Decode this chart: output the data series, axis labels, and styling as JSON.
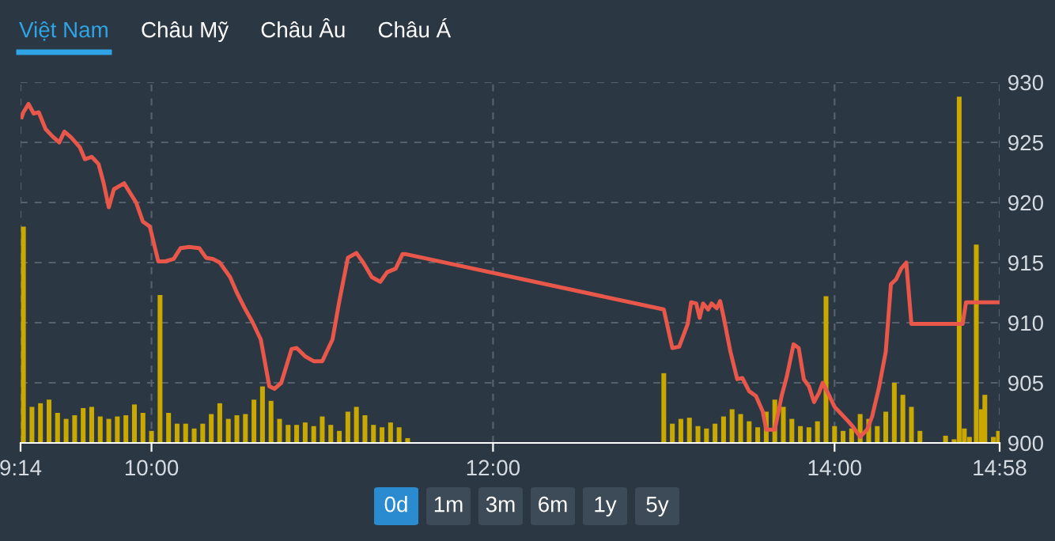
{
  "chart_data": {
    "type": "line",
    "annotations": [
      "Việt Nam",
      "Châu Mỹ",
      "Châu Âu",
      "Châu Á",
      "0d",
      "1m",
      "3m",
      "6m",
      "1y",
      "5y"
    ],
    "xlim": [
      9.2333,
      14.9667
    ],
    "ylim": [
      900,
      930
    ],
    "xticks": [
      {
        "value": 9.2333,
        "label": "9:14"
      },
      {
        "value": 10,
        "label": "10:00"
      },
      {
        "value": 12,
        "label": "12:00"
      },
      {
        "value": 14,
        "label": "14:00"
      },
      {
        "value": 14.9667,
        "label": "14:58"
      }
    ],
    "yticks": [
      900,
      905,
      910,
      915,
      920,
      925,
      930
    ],
    "grid": true,
    "legend": false,
    "marker": "none",
    "line_style": "solid",
    "series": [
      {
        "type": "bar",
        "color": "#c9a800",
        "x": [
          9.25,
          9.3,
          9.35,
          9.4,
          9.45,
          9.5,
          9.55,
          9.6,
          9.65,
          9.7,
          9.75,
          9.8,
          9.85,
          9.9,
          9.95,
          10.0,
          10.05,
          10.1,
          10.15,
          10.2,
          10.25,
          10.3,
          10.35,
          10.4,
          10.45,
          10.5,
          10.55,
          10.6,
          10.65,
          10.7,
          10.75,
          10.8,
          10.85,
          10.9,
          10.95,
          11.0,
          11.05,
          11.1,
          11.15,
          11.2,
          11.25,
          11.3,
          11.35,
          11.4,
          11.45,
          11.5,
          13.0,
          13.05,
          13.1,
          13.15,
          13.2,
          13.25,
          13.3,
          13.35,
          13.4,
          13.45,
          13.5,
          13.55,
          13.6,
          13.65,
          13.7,
          13.75,
          13.8,
          13.85,
          13.9,
          13.95,
          14.0,
          14.05,
          14.1,
          14.15,
          14.2,
          14.25,
          14.3,
          14.35,
          14.4,
          14.45,
          14.5,
          14.65,
          14.7,
          14.73,
          14.76,
          14.79,
          14.83,
          14.86,
          14.88,
          14.93,
          14.96
        ],
        "values": [
          918.0,
          903.0,
          903.3,
          903.6,
          902.5,
          902.0,
          902.3,
          902.9,
          903.0,
          902.2,
          902.0,
          902.2,
          902.3,
          903.2,
          902.5,
          901.0,
          912.3,
          902.5,
          901.6,
          901.6,
          901.2,
          901.6,
          902.4,
          903.3,
          902.0,
          902.3,
          902.4,
          903.6,
          904.7,
          903.5,
          902.0,
          901.5,
          901.5,
          901.7,
          901.4,
          902.2,
          901.5,
          901.0,
          902.6,
          903.0,
          902.3,
          901.5,
          901.3,
          901.7,
          901.3,
          900.4,
          905.8,
          901.6,
          902.0,
          902.1,
          901.4,
          901.2,
          901.6,
          902.2,
          902.8,
          902.4,
          901.8,
          901.3,
          902.6,
          903.6,
          903.0,
          902.0,
          901.4,
          901.3,
          901.8,
          912.2,
          901.4,
          901.0,
          901.2,
          902.4,
          902.0,
          901.4,
          902.6,
          905.0,
          904.0,
          903.0,
          901.0,
          900.6,
          900.3,
          928.8,
          901.2,
          900.5,
          916.5,
          902.8,
          904.0,
          900.5,
          901.0
        ]
      },
      {
        "color": "#e8574a",
        "x": [
          9.24,
          9.25,
          9.28,
          9.31,
          9.34,
          9.38,
          9.42,
          9.46,
          9.49,
          9.53,
          9.58,
          9.61,
          9.65,
          9.69,
          9.72,
          9.75,
          9.78,
          9.84,
          9.87,
          9.91,
          9.95,
          9.99,
          10.04,
          10.08,
          10.13,
          10.17,
          10.22,
          10.28,
          10.32,
          10.36,
          10.4,
          10.46,
          10.5,
          10.55,
          10.59,
          10.64,
          10.69,
          10.72,
          10.76,
          10.82,
          10.85,
          10.9,
          10.95,
          11.0,
          11.06,
          11.1,
          11.15,
          11.2,
          11.24,
          11.29,
          11.34,
          11.38,
          11.43,
          11.47,
          11.49,
          13.0,
          13.05,
          13.09,
          13.14,
          13.16,
          13.19,
          13.21,
          13.23,
          13.26,
          13.28,
          13.31,
          13.33,
          13.35,
          13.39,
          13.43,
          13.46,
          13.5,
          13.54,
          13.58,
          13.6,
          13.65,
          13.69,
          13.72,
          13.76,
          13.79,
          13.82,
          13.85,
          13.88,
          13.91,
          13.93,
          13.97,
          14.0,
          14.04,
          14.08,
          14.11,
          14.15,
          14.19,
          14.22,
          14.26,
          14.3,
          14.33,
          14.36,
          14.39,
          14.42,
          14.45,
          14.75,
          14.77,
          14.96
        ],
        "values": [
          927.1,
          927.5,
          928.2,
          927.4,
          927.5,
          926.1,
          925.5,
          925.0,
          925.9,
          925.4,
          924.6,
          923.6,
          923.8,
          923.2,
          921.6,
          919.6,
          921.1,
          921.6,
          920.9,
          920.0,
          918.4,
          918.0,
          915.1,
          915.1,
          915.3,
          916.2,
          916.3,
          916.2,
          915.4,
          915.3,
          915.0,
          913.8,
          912.5,
          911.1,
          910.1,
          908.6,
          904.7,
          904.5,
          905.0,
          907.8,
          907.9,
          907.2,
          906.8,
          906.8,
          908.6,
          911.8,
          915.4,
          915.8,
          915.0,
          913.8,
          913.4,
          914.2,
          914.5,
          915.7,
          915.7,
          911.1,
          907.9,
          908.0,
          909.9,
          911.7,
          911.6,
          910.4,
          911.6,
          911.1,
          911.6,
          911.2,
          911.8,
          910.5,
          907.6,
          905.3,
          905.4,
          904.3,
          903.9,
          902.6,
          901.1,
          901.1,
          903.9,
          905.5,
          908.2,
          907.9,
          905.3,
          904.7,
          903.4,
          904.2,
          905.0,
          903.9,
          903.0,
          902.4,
          901.8,
          901.3,
          900.5,
          901.1,
          902.2,
          904.6,
          907.6,
          913.2,
          913.6,
          914.5,
          915.0,
          909.9,
          909.9,
          911.7,
          911.7
        ]
      }
    ]
  }
}
